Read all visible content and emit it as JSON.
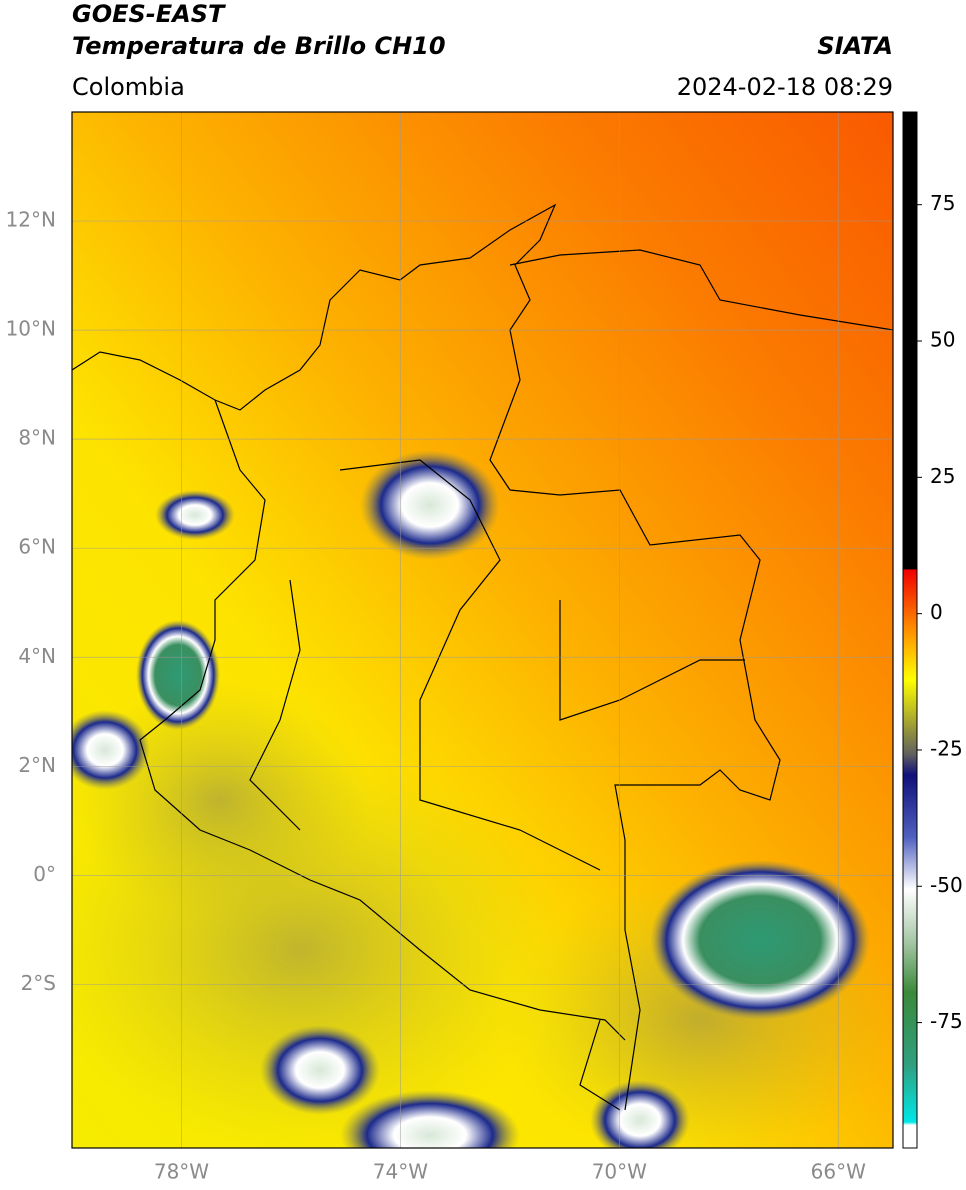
{
  "header": {
    "title": "GOES-EAST",
    "subtitle": "Temperatura de Brillo CH10",
    "source": "SIATA",
    "region": "Colombia",
    "timestamp": "2024-02-18 08:29"
  },
  "map": {
    "lon_range": [
      -80,
      -65
    ],
    "lat_range": [
      -5,
      14
    ],
    "grid": true,
    "lat_ticks": [
      {
        "value": 12,
        "label": "12°N"
      },
      {
        "value": 10,
        "label": "10°N"
      },
      {
        "value": 8,
        "label": "8°N"
      },
      {
        "value": 6,
        "label": "6°N"
      },
      {
        "value": 4,
        "label": "4°N"
      },
      {
        "value": 2,
        "label": "2°N"
      },
      {
        "value": 0,
        "label": "0°"
      },
      {
        "value": -2,
        "label": "2°S"
      }
    ],
    "lon_ticks": [
      {
        "value": -78,
        "label": "78°W"
      },
      {
        "value": -74,
        "label": "74°W"
      },
      {
        "value": -70,
        "label": "70°W"
      },
      {
        "value": -66,
        "label": "66°W"
      }
    ]
  },
  "colorbar": {
    "range": [
      -98,
      92
    ],
    "ticks": [
      75,
      50,
      25,
      0,
      -25,
      -50,
      -75
    ]
  }
}
